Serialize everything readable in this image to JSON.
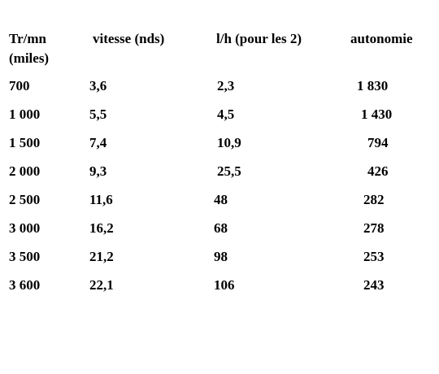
{
  "table": {
    "headers": {
      "col0_line1": "Tr/mn",
      "col0_line2": "(miles)",
      "col1": "vitesse (nds)",
      "col2": "l/h (pour les 2)",
      "col3": "autonomie"
    },
    "rows": [
      {
        "rpm": "700",
        "speed": "3,6",
        "fuel": "2,3",
        "range": "1 830"
      },
      {
        "rpm": "1 000",
        "speed": "5,5",
        "fuel": "4,5",
        "range": "1 430"
      },
      {
        "rpm": "1 500",
        "speed": "7,4",
        "fuel": "10,9",
        "range": "794"
      },
      {
        "rpm": "2 000",
        "speed": "9,3",
        "fuel": "25,5",
        "range": "426"
      },
      {
        "rpm": "2 500",
        "speed": "11,6",
        "fuel": "48",
        "range": "282"
      },
      {
        "rpm": "3 000",
        "speed": "16,2",
        "fuel": "68",
        "range": "278"
      },
      {
        "rpm": "3 500",
        "speed": "21,2",
        "fuel": "98",
        "range": "253"
      },
      {
        "rpm": "3 600",
        "speed": "22,1",
        "fuel": "106",
        "range": "243"
      }
    ]
  }
}
